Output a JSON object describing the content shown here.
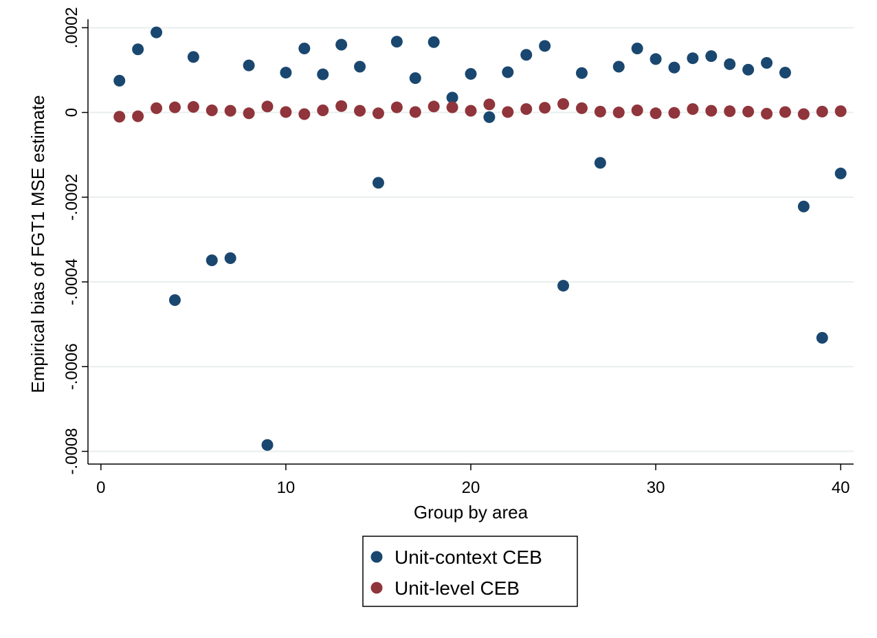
{
  "chart_data": {
    "type": "scatter",
    "title": "",
    "xlabel": "Group by area",
    "ylabel": "Empirical bias of FGT1 MSE estimate",
    "xlim": [
      -0.7,
      40.7
    ],
    "ylim": [
      -0.00083,
      0.00022
    ],
    "x_ticks": [
      0,
      10,
      20,
      30,
      40
    ],
    "x_tick_labels": [
      "0",
      "10",
      "20",
      "30",
      "40"
    ],
    "y_ticks": [
      -0.0008,
      -0.0006,
      -0.0004,
      -0.0002,
      0,
      0.0002
    ],
    "y_tick_labels": [
      "-.0008",
      "-.0006",
      "-.0004",
      "-.0002",
      "0",
      ".0002"
    ],
    "grid": "horizontal",
    "legend_position": "bottom",
    "series": [
      {
        "name": "Unit-context CEB",
        "color": "#1a476f",
        "x": [
          1,
          2,
          3,
          4,
          5,
          6,
          7,
          8,
          9,
          10,
          11,
          12,
          13,
          14,
          15,
          16,
          17,
          18,
          19,
          20,
          21,
          22,
          23,
          24,
          25,
          26,
          27,
          28,
          29,
          30,
          31,
          32,
          33,
          34,
          35,
          36,
          37,
          38,
          39,
          40
        ],
        "y": [
          7.5e-05,
          0.000149,
          0.000189,
          -0.000443,
          0.000131,
          -0.000349,
          -0.000344,
          0.000111,
          -0.000785,
          9.4e-05,
          0.000151,
          9e-05,
          0.00016,
          0.000108,
          -0.000166,
          0.000167,
          8.1e-05,
          0.000166,
          3.5e-05,
          9.1e-05,
          -1.1e-05,
          9.5e-05,
          0.000136,
          0.000157,
          -0.000409,
          9.3e-05,
          -0.000119,
          0.000108,
          0.000151,
          0.000126,
          0.000106,
          0.000128,
          0.000133,
          0.000114,
          0.000101,
          0.000117,
          9.4e-05,
          -0.000222,
          -0.000532,
          -0.000144
        ]
      },
      {
        "name": "Unit-level CEB",
        "color": "#90353b",
        "x": [
          1,
          2,
          3,
          4,
          5,
          6,
          7,
          8,
          9,
          10,
          11,
          12,
          13,
          14,
          15,
          16,
          17,
          18,
          19,
          20,
          21,
          22,
          23,
          24,
          25,
          26,
          27,
          28,
          29,
          30,
          31,
          32,
          33,
          34,
          35,
          36,
          37,
          38,
          39,
          40
        ],
        "y": [
          -1e-05,
          -9e-06,
          1e-05,
          1.2e-05,
          1.3e-05,
          5e-06,
          4e-06,
          -2e-06,
          1.4e-05,
          1e-06,
          -4e-06,
          5e-06,
          1.5e-05,
          4e-06,
          -2e-06,
          1.2e-05,
          1e-06,
          1.4e-05,
          1.2e-05,
          4e-06,
          1.9e-05,
          1e-06,
          8e-06,
          1.1e-05,
          2e-05,
          1e-05,
          2e-06,
          0.0,
          5e-06,
          -2e-06,
          -1e-06,
          8e-06,
          4e-06,
          3e-06,
          2e-06,
          -3e-06,
          1e-06,
          -4e-06,
          2e-06,
          3e-06
        ]
      }
    ]
  }
}
